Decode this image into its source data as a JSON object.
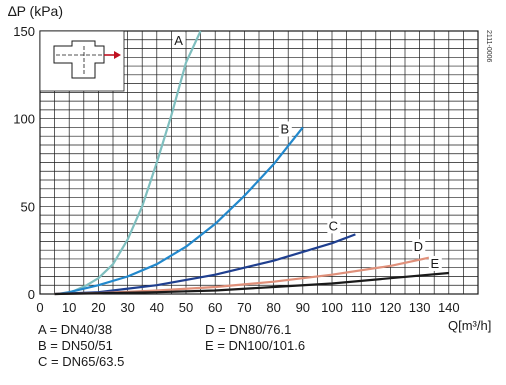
{
  "chart_data": {
    "type": "line",
    "ylabel": "∆P (kPa)",
    "xlabel": "Q[m³/h]",
    "code": "2111-0006",
    "xlim": [
      0,
      150
    ],
    "ylim": [
      0,
      150
    ],
    "xticks": [
      0,
      10,
      20,
      30,
      40,
      50,
      60,
      70,
      80,
      90,
      100,
      110,
      120,
      130,
      140
    ],
    "yticks": [
      0,
      50,
      100,
      150
    ],
    "grid": true,
    "series": [
      {
        "name": "A",
        "color": "#7fbfbf",
        "x": [
          8,
          12,
          16,
          20,
          25,
          30,
          35,
          40,
          45,
          50,
          55
        ],
        "y": [
          0,
          2,
          5,
          9,
          17,
          31,
          50,
          75,
          102,
          132,
          150
        ]
      },
      {
        "name": "B",
        "color": "#2288cc",
        "x": [
          6,
          10,
          20,
          30,
          40,
          50,
          60,
          70,
          80,
          90
        ],
        "y": [
          0,
          1,
          5,
          10,
          17,
          27,
          40,
          56,
          74,
          95
        ]
      },
      {
        "name": "C",
        "color": "#1f3f8f",
        "x": [
          5,
          20,
          40,
          60,
          80,
          100,
          108
        ],
        "y": [
          0,
          1,
          5,
          11,
          19,
          29,
          34
        ]
      },
      {
        "name": "D",
        "color": "#e0907a",
        "x": [
          5,
          20,
          40,
          60,
          80,
          100,
          120,
          134
        ],
        "y": [
          0,
          0.5,
          2,
          4,
          7,
          11,
          16,
          21
        ]
      },
      {
        "name": "E",
        "color": "#1a1a1a",
        "x": [
          5,
          40,
          60,
          80,
          100,
          120,
          140
        ],
        "y": [
          0,
          1,
          2,
          4,
          6,
          9,
          12
        ]
      }
    ]
  },
  "legend": {
    "a": "A = DN40/38",
    "b": "B = DN50/51",
    "c": "C = DN65/63.5",
    "d": "D = DN80/76.1",
    "e": "E = DN100/101.6"
  }
}
